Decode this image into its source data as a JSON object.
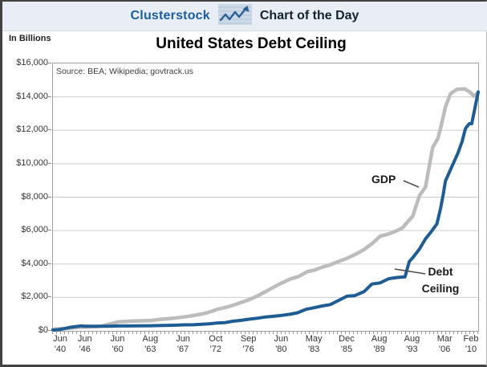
{
  "header": {
    "brand": "Clusterstock",
    "title": "Chart of the Day",
    "icon": "line-chart-icon"
  },
  "chart": {
    "title": "United States Debt Ceiling",
    "units_label": "In Billions",
    "source": "Source: BEA; Wikipedia; govtrack.us",
    "annotations": {
      "gdp": "GDP",
      "debt": "Debt\nCeiling"
    }
  },
  "colors": {
    "brand_blue": "#1a5da5",
    "header_bg": "#e9eef4",
    "gdp_line": "#bcbcbc",
    "debt_line": "#1e5c94",
    "gridline": "#cdcdcd",
    "plot_border": "#9e9e9e",
    "tick_text": "#333333"
  },
  "chart_data": {
    "type": "line",
    "title": "United States Debt Ceiling",
    "ylabel": "In Billions",
    "ylim": [
      0,
      16000
    ],
    "ytick_step": 2000,
    "ytick_labels": [
      "$16,000",
      "$14,000",
      "$12,000",
      "$10,000",
      "$8,000",
      "$6,000",
      "$4,000",
      "$2,000",
      "$0"
    ],
    "ytick_values": [
      16000,
      14000,
      12000,
      10000,
      8000,
      6000,
      4000,
      2000,
      0
    ],
    "x_ticks": [
      {
        "month": "Jun",
        "year": "'40"
      },
      {
        "month": "Jun",
        "year": "'46"
      },
      {
        "month": "Jun",
        "year": "'60"
      },
      {
        "month": "Aug",
        "year": "'63"
      },
      {
        "month": "Jun",
        "year": "'67"
      },
      {
        "month": "Oct",
        "year": "'72"
      },
      {
        "month": "Sep",
        "year": "'76"
      },
      {
        "month": "Jun",
        "year": "'80"
      },
      {
        "month": "May",
        "year": "'83"
      },
      {
        "month": "Dec",
        "year": "'85"
      },
      {
        "month": "Aug",
        "year": "'89"
      },
      {
        "month": "Aug",
        "year": "'93"
      },
      {
        "month": "Mar",
        "year": "'06"
      },
      {
        "month": "Feb",
        "year": "'10"
      }
    ],
    "grid": true,
    "legend_position": "none",
    "anchor_values": {
      "debt_ceiling_at_labels": [
        49,
        275,
        293,
        309,
        358,
        465,
        700,
        925,
        1389,
        2079,
        2870,
        4370,
        8965,
        14294
      ],
      "gdp_at_labels": [
        103,
        222,
        543,
        618,
        832,
        1282,
        1873,
        2862,
        3638,
        4347,
        5658,
        6858,
        13400,
        14250
      ]
    },
    "series": [
      {
        "name": "GDP",
        "color": "#bcbcbc",
        "points": [
          [
            0,
            103
          ],
          [
            0.02,
            127
          ],
          [
            0.04,
            162
          ],
          [
            0.055,
            199
          ],
          [
            0.065,
            212
          ],
          [
            0.077,
            222
          ],
          [
            0.095,
            245
          ],
          [
            0.115,
            285
          ],
          [
            0.13,
            390
          ],
          [
            0.142,
            460
          ],
          [
            0.154,
            543
          ],
          [
            0.17,
            555
          ],
          [
            0.19,
            585
          ],
          [
            0.21,
            600
          ],
          [
            0.231,
            618
          ],
          [
            0.25,
            680
          ],
          [
            0.27,
            720
          ],
          [
            0.29,
            780
          ],
          [
            0.308,
            832
          ],
          [
            0.325,
            900
          ],
          [
            0.345,
            985
          ],
          [
            0.362,
            1080
          ],
          [
            0.375,
            1180
          ],
          [
            0.385,
            1282
          ],
          [
            0.402,
            1380
          ],
          [
            0.42,
            1500
          ],
          [
            0.442,
            1690
          ],
          [
            0.462,
            1873
          ],
          [
            0.48,
            2080
          ],
          [
            0.5,
            2350
          ],
          [
            0.52,
            2630
          ],
          [
            0.538,
            2862
          ],
          [
            0.558,
            3100
          ],
          [
            0.578,
            3255
          ],
          [
            0.598,
            3540
          ],
          [
            0.615,
            3638
          ],
          [
            0.632,
            3800
          ],
          [
            0.65,
            3935
          ],
          [
            0.672,
            4150
          ],
          [
            0.692,
            4347
          ],
          [
            0.712,
            4590
          ],
          [
            0.732,
            4870
          ],
          [
            0.752,
            5250
          ],
          [
            0.769,
            5658
          ],
          [
            0.79,
            5800
          ],
          [
            0.808,
            5980
          ],
          [
            0.822,
            6170
          ],
          [
            0.834,
            6520
          ],
          [
            0.846,
            6858
          ],
          [
            0.862,
            8100
          ],
          [
            0.876,
            8600
          ],
          [
            0.893,
            10980
          ],
          [
            0.905,
            11500
          ],
          [
            0.913,
            12270
          ],
          [
            0.923,
            13400
          ],
          [
            0.935,
            14200
          ],
          [
            0.95,
            14450
          ],
          [
            0.968,
            14480
          ],
          [
            0.98,
            14300
          ],
          [
            0.99,
            14050
          ],
          [
            1,
            14250
          ]
        ]
      },
      {
        "name": "Debt Ceiling",
        "color": "#1e5c94",
        "points": [
          [
            0,
            49
          ],
          [
            0.012,
            65
          ],
          [
            0.025,
            125
          ],
          [
            0.04,
            210
          ],
          [
            0.055,
            260
          ],
          [
            0.065,
            300
          ],
          [
            0.077,
            275
          ],
          [
            0.115,
            275
          ],
          [
            0.13,
            281
          ],
          [
            0.154,
            293
          ],
          [
            0.175,
            295
          ],
          [
            0.2,
            305
          ],
          [
            0.231,
            309
          ],
          [
            0.26,
            324
          ],
          [
            0.285,
            336
          ],
          [
            0.308,
            358
          ],
          [
            0.33,
            365
          ],
          [
            0.352,
            398
          ],
          [
            0.37,
            430
          ],
          [
            0.385,
            465
          ],
          [
            0.405,
            495
          ],
          [
            0.423,
            577
          ],
          [
            0.443,
            628
          ],
          [
            0.462,
            700
          ],
          [
            0.48,
            752
          ],
          [
            0.5,
            830
          ],
          [
            0.52,
            879
          ],
          [
            0.538,
            925
          ],
          [
            0.555,
            985
          ],
          [
            0.575,
            1080
          ],
          [
            0.595,
            1290
          ],
          [
            0.615,
            1389
          ],
          [
            0.633,
            1490
          ],
          [
            0.652,
            1573
          ],
          [
            0.672,
            1824
          ],
          [
            0.692,
            2079
          ],
          [
            0.71,
            2111
          ],
          [
            0.732,
            2352
          ],
          [
            0.75,
            2800
          ],
          [
            0.769,
            2870
          ],
          [
            0.79,
            3123
          ],
          [
            0.81,
            3195
          ],
          [
            0.828,
            3230
          ],
          [
            0.838,
            4145
          ],
          [
            0.846,
            4370
          ],
          [
            0.862,
            4900
          ],
          [
            0.876,
            5500
          ],
          [
            0.89,
            5950
          ],
          [
            0.903,
            6400
          ],
          [
            0.912,
            7384
          ],
          [
            0.918,
            8184
          ],
          [
            0.923,
            8965
          ],
          [
            0.938,
            9815
          ],
          [
            0.952,
            10615
          ],
          [
            0.962,
            11315
          ],
          [
            0.97,
            12104
          ],
          [
            0.979,
            12394
          ],
          [
            0.985,
            12394
          ],
          [
            1,
            14294
          ]
        ]
      }
    ]
  }
}
